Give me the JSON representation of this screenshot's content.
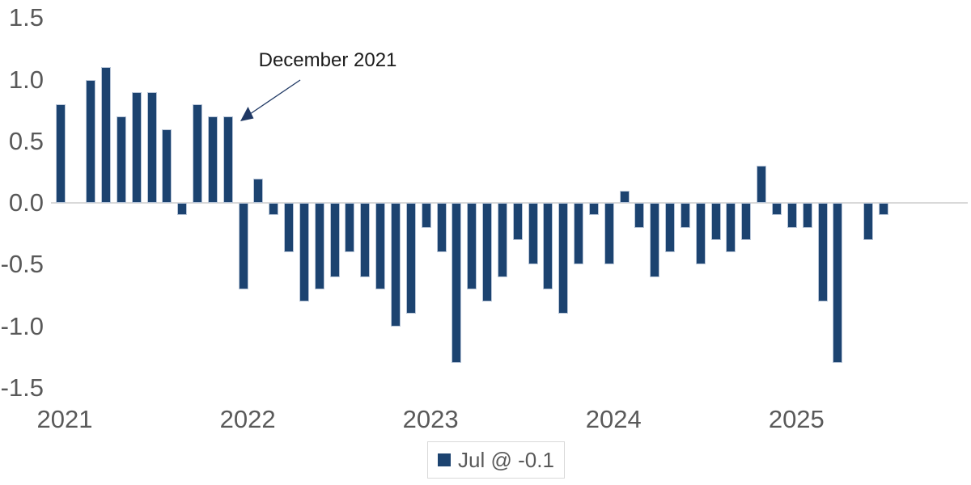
{
  "chart_data": {
    "type": "bar",
    "title": "",
    "series_name": "Jul @ -0.1",
    "categories": [
      "Jan 2021",
      "Feb 2021",
      "Mar 2021",
      "Apr 2021",
      "May 2021",
      "Jun 2021",
      "Jul 2021",
      "Aug 2021",
      "Sep 2021",
      "Oct 2021",
      "Nov 2021",
      "Dec 2021",
      "Jan 2022",
      "Feb 2022",
      "Mar 2022",
      "Apr 2022",
      "May 2022",
      "Jun 2022",
      "Jul 2022",
      "Aug 2022",
      "Sep 2022",
      "Oct 2022",
      "Nov 2022",
      "Dec 2022",
      "Jan 2023",
      "Feb 2023",
      "Mar 2023",
      "Apr 2023",
      "May 2023",
      "Jun 2023",
      "Jul 2023",
      "Aug 2023",
      "Sep 2023",
      "Oct 2023",
      "Nov 2023",
      "Dec 2023",
      "Jan 2024",
      "Feb 2024",
      "Mar 2024",
      "Apr 2024",
      "May 2024",
      "Jun 2024",
      "Jul 2024",
      "Aug 2024",
      "Sep 2024",
      "Oct 2024",
      "Nov 2024",
      "Dec 2024",
      "Jan 2025",
      "Feb 2025",
      "Mar 2025",
      "Apr 2025",
      "May 2025",
      "Jun 2025",
      "Jul 2025"
    ],
    "values": [
      0.8,
      0.0,
      1.0,
      1.1,
      0.7,
      0.9,
      0.9,
      0.6,
      -0.1,
      0.8,
      0.7,
      0.7,
      -0.7,
      0.2,
      -0.1,
      -0.4,
      -0.8,
      -0.7,
      -0.6,
      -0.4,
      -0.6,
      -0.7,
      -1.0,
      -0.9,
      -0.2,
      -0.4,
      -1.3,
      -0.7,
      -0.8,
      -0.6,
      -0.3,
      -0.5,
      -0.7,
      -0.9,
      -0.5,
      -0.1,
      -0.5,
      0.1,
      -0.2,
      -0.6,
      -0.4,
      -0.2,
      -0.5,
      -0.3,
      -0.4,
      -0.3,
      0.3,
      -0.1,
      -0.2,
      -0.2,
      -0.8,
      -1.3,
      0.0,
      -0.3,
      -0.1
    ],
    "ylim": [
      -1.5,
      1.5
    ],
    "yticks": [
      1.5,
      1.0,
      0.5,
      0.0,
      -0.5,
      -1.0,
      -1.5
    ],
    "ytick_labels": [
      "1.5",
      "1.0",
      "0.5",
      "0.0",
      "-0.5",
      "-1.0",
      "-1.5"
    ],
    "xticks": [
      {
        "label": "2021",
        "month_index": 0
      },
      {
        "label": "2022",
        "month_index": 12
      },
      {
        "label": "2023",
        "month_index": 24
      },
      {
        "label": "2024",
        "month_index": 36
      },
      {
        "label": "2025",
        "month_index": 48
      }
    ],
    "grid": false,
    "legend_position": "bottom-center",
    "annotation": {
      "text": "December 2021",
      "target_category": "Dec 2021"
    },
    "colors": {
      "bar": "#1c4370",
      "bar_border": "#b9c6d8",
      "axis_text": "#595959",
      "zero_line": "#d9d9d9",
      "annotation_text": "#1b1b1b",
      "arrow": "#1f3864",
      "legend_border": "#d9d9d9"
    }
  },
  "legend": {
    "label": "Jul @ -0.1"
  }
}
